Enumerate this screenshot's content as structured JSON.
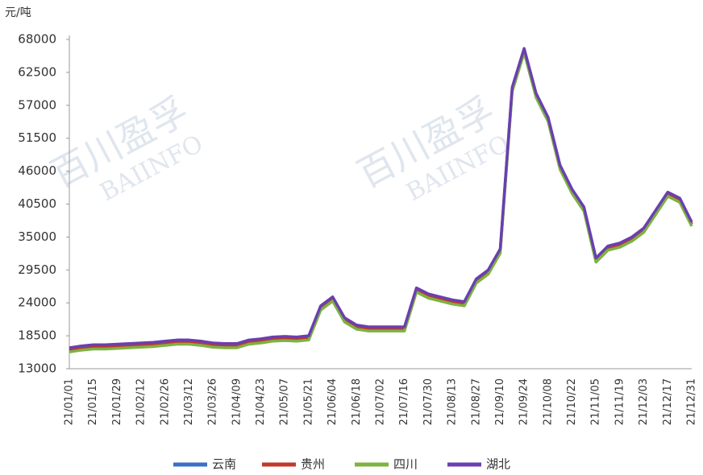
{
  "chart_data": {
    "type": "line",
    "y_label": "元/吨",
    "watermark": [
      "百川盈孚",
      "BAIINFO"
    ],
    "categories": [
      "21/01/01",
      null,
      "21/01/15",
      null,
      "21/01/29",
      null,
      "21/02/12",
      null,
      "21/02/26",
      null,
      "21/03/12",
      null,
      "21/03/26",
      null,
      "21/04/09",
      null,
      "21/04/23",
      null,
      "21/05/07",
      null,
      "21/05/21",
      null,
      "21/06/04",
      null,
      "21/06/18",
      null,
      "21/07/02",
      null,
      "21/07/16",
      null,
      "21/07/30",
      null,
      "21/08/13",
      null,
      "21/08/27",
      null,
      "21/09/10",
      null,
      "21/09/24",
      null,
      "21/10/08",
      null,
      "21/10/22",
      null,
      "21/11/05",
      null,
      "21/11/19",
      null,
      "21/12/03",
      null,
      "21/12/17",
      null,
      "21/12/31"
    ],
    "series": [
      {
        "name": "云南",
        "color": "#3a6fc4",
        "values": [
          16100,
          16400,
          16600,
          16600,
          16700,
          16800,
          16900,
          17000,
          17200,
          17400,
          17400,
          17200,
          16900,
          16800,
          16800,
          17400,
          17600,
          17900,
          18000,
          17900,
          18100,
          23100,
          24600,
          21100,
          19900,
          19600,
          19600,
          19600,
          19600,
          26100,
          25100,
          24600,
          24100,
          23800,
          27600,
          29100,
          32600,
          59600,
          66100,
          58600,
          54600,
          46600,
          42600,
          39600,
          31100,
          33100,
          33600,
          34600,
          36100,
          39100,
          42100,
          41100,
          37100
        ]
      },
      {
        "name": "贵州",
        "color": "#c0392b",
        "values": [
          16200,
          16500,
          16700,
          16700,
          16800,
          16900,
          17000,
          17100,
          17300,
          17500,
          17500,
          17300,
          17000,
          16900,
          16900,
          17500,
          17700,
          18000,
          18100,
          18000,
          18200,
          23200,
          24700,
          21200,
          20000,
          19700,
          19700,
          19700,
          19700,
          26200,
          25200,
          24700,
          24200,
          23900,
          27700,
          29200,
          32700,
          59700,
          66200,
          58700,
          54700,
          46700,
          42700,
          39700,
          31200,
          33200,
          33700,
          34700,
          36200,
          39200,
          42200,
          41200,
          37200
        ]
      },
      {
        "name": "四川",
        "color": "#7cb342",
        "values": [
          15800,
          16100,
          16300,
          16300,
          16400,
          16500,
          16600,
          16700,
          16900,
          17100,
          17100,
          16900,
          16600,
          16500,
          16500,
          17100,
          17300,
          17600,
          17700,
          17600,
          17800,
          22800,
          24300,
          20800,
          19600,
          19300,
          19300,
          19300,
          19300,
          25800,
          24800,
          24300,
          23800,
          23500,
          27300,
          28800,
          32300,
          59300,
          65800,
          58300,
          54300,
          46300,
          42300,
          39300,
          30800,
          32800,
          33300,
          34300,
          35800,
          38800,
          41800,
          40800,
          36800
        ]
      },
      {
        "name": "湖北",
        "color": "#6a3fb0",
        "values": [
          16500,
          16800,
          17000,
          17000,
          17100,
          17200,
          17300,
          17400,
          17600,
          17800,
          17800,
          17600,
          17300,
          17200,
          17200,
          17800,
          18000,
          18300,
          18400,
          18300,
          18500,
          23500,
          25000,
          21500,
          20300,
          20000,
          20000,
          20000,
          20000,
          26500,
          25500,
          25000,
          24500,
          24200,
          28000,
          29500,
          33000,
          60000,
          66500,
          59000,
          55000,
          47000,
          43000,
          40000,
          31500,
          33500,
          34000,
          35000,
          36500,
          39500,
          42500,
          41500,
          37500
        ]
      }
    ],
    "ylim": [
      13000,
      68000
    ],
    "yticks": [
      13000,
      18500,
      24000,
      29500,
      35000,
      40500,
      46000,
      51500,
      57000,
      62500,
      68000
    ],
    "legend": "bottom"
  }
}
